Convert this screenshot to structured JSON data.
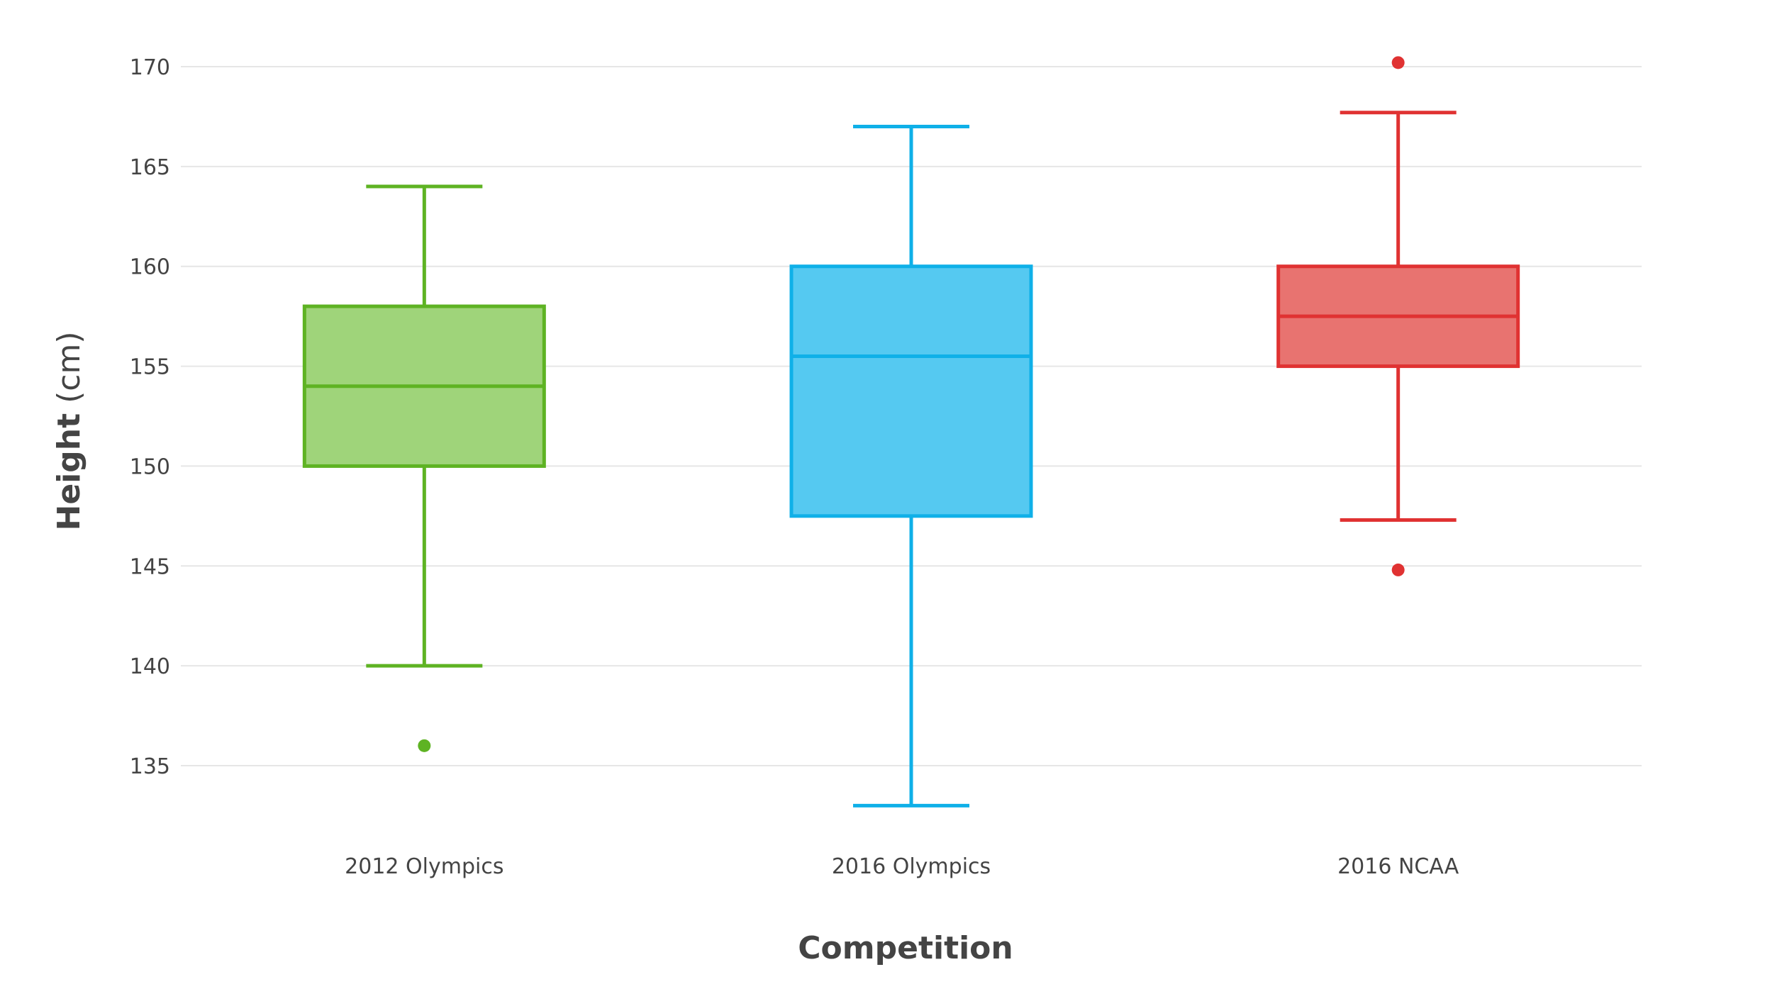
{
  "chart_data": {
    "type": "box",
    "xlabel": "Competition",
    "ylabel": "Height",
    "ylabel_unit": "(cm)",
    "ylim": [
      131.5,
      172
    ],
    "yticks": [
      135,
      140,
      145,
      150,
      155,
      160,
      165,
      170
    ],
    "grid": true,
    "categories": [
      "2012 Olympics",
      "2016 Olympics",
      "2016 NCAA"
    ],
    "series": [
      {
        "category": "2012 Olympics",
        "color": "#5eb323",
        "fill": "#9fd47a",
        "whisker_low": 140,
        "q1": 150,
        "median": 154,
        "q3": 158,
        "whisker_high": 164,
        "outliers": [
          136
        ]
      },
      {
        "category": "2016 Olympics",
        "color": "#0fb0e8",
        "fill": "#55c9f1",
        "whisker_low": 133,
        "q1": 147.5,
        "median": 155.5,
        "q3": 160,
        "whisker_high": 167,
        "outliers": []
      },
      {
        "category": "2016 NCAA",
        "color": "#e03232",
        "fill": "#e87370",
        "whisker_low": 147.3,
        "q1": 155,
        "median": 157.5,
        "q3": 160,
        "whisker_high": 167.7,
        "outliers": [
          144.8,
          170.2
        ]
      }
    ]
  }
}
